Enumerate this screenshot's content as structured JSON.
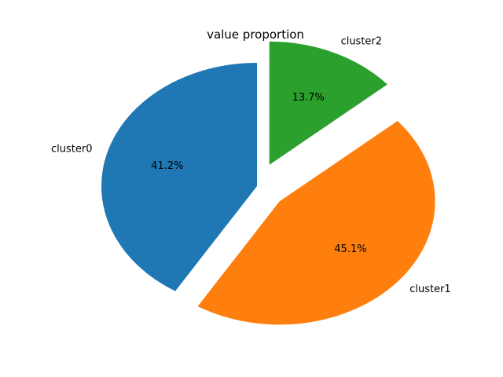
{
  "chart_data": {
    "type": "pie",
    "title": "value proportion",
    "start_angle_deg": 90,
    "direction": "counterclockwise",
    "exploded_slices": [
      "cluster1",
      "cluster2"
    ],
    "slices": [
      {
        "label": "cluster0",
        "value": 41.2,
        "pct_label": "41.2%",
        "color": "#1f77b4"
      },
      {
        "label": "cluster1",
        "value": 45.1,
        "pct_label": "45.1%",
        "color": "#ff7f0e"
      },
      {
        "label": "cluster2",
        "value": 13.7,
        "pct_label": "13.7%",
        "color": "#2ca02c"
      }
    ]
  }
}
